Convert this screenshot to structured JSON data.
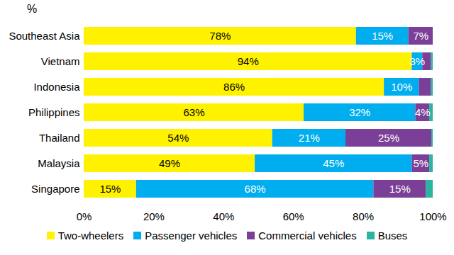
{
  "chart_data": {
    "type": "bar",
    "orientation": "horizontal",
    "stacked": true,
    "data_labels": true,
    "legend": "bottom",
    "xlabel": "%",
    "categories": [
      "Southeast Asia",
      "Vietnam",
      "Indonesia",
      "Philippines",
      "Thailand",
      "Malaysia",
      "Singapore"
    ],
    "xlim": [
      0,
      100
    ],
    "xticks": [
      {
        "value": 0,
        "label": "0%"
      },
      {
        "value": 20,
        "label": "20%"
      },
      {
        "value": 40,
        "label": "40%"
      },
      {
        "value": 60,
        "label": "60%"
      },
      {
        "value": 80,
        "label": "80%"
      },
      {
        "value": 100,
        "label": "100%"
      }
    ],
    "series": [
      {
        "name": "Two-wheelers",
        "color": "#fff200",
        "values": [
          78,
          94,
          86,
          63,
          54,
          49,
          15
        ],
        "value_labels": [
          "78%",
          "94%",
          "86%",
          "63%",
          "54%",
          "49%",
          "15%"
        ]
      },
      {
        "name": "Passenger vehicles",
        "color": "#00aeef",
        "values": [
          15,
          3,
          10,
          32,
          21,
          45,
          68
        ],
        "value_labels": [
          "15%",
          "3%",
          "10%",
          "32%",
          "21%",
          "45%",
          "68%"
        ]
      },
      {
        "name": "Commercial vehicles",
        "color": "#7b3f98",
        "values": [
          7,
          2.5,
          3.5,
          4,
          24.6,
          5,
          15
        ],
        "value_labels": [
          "7%",
          null,
          null,
          "4%",
          "25%",
          "5%",
          "15%"
        ]
      },
      {
        "name": "Buses",
        "color": "#2bb5a0",
        "values": [
          0,
          0.5,
          0.5,
          1,
          0.4,
          1,
          2
        ],
        "value_labels": [
          null,
          null,
          null,
          null,
          null,
          null,
          null
        ]
      }
    ]
  }
}
